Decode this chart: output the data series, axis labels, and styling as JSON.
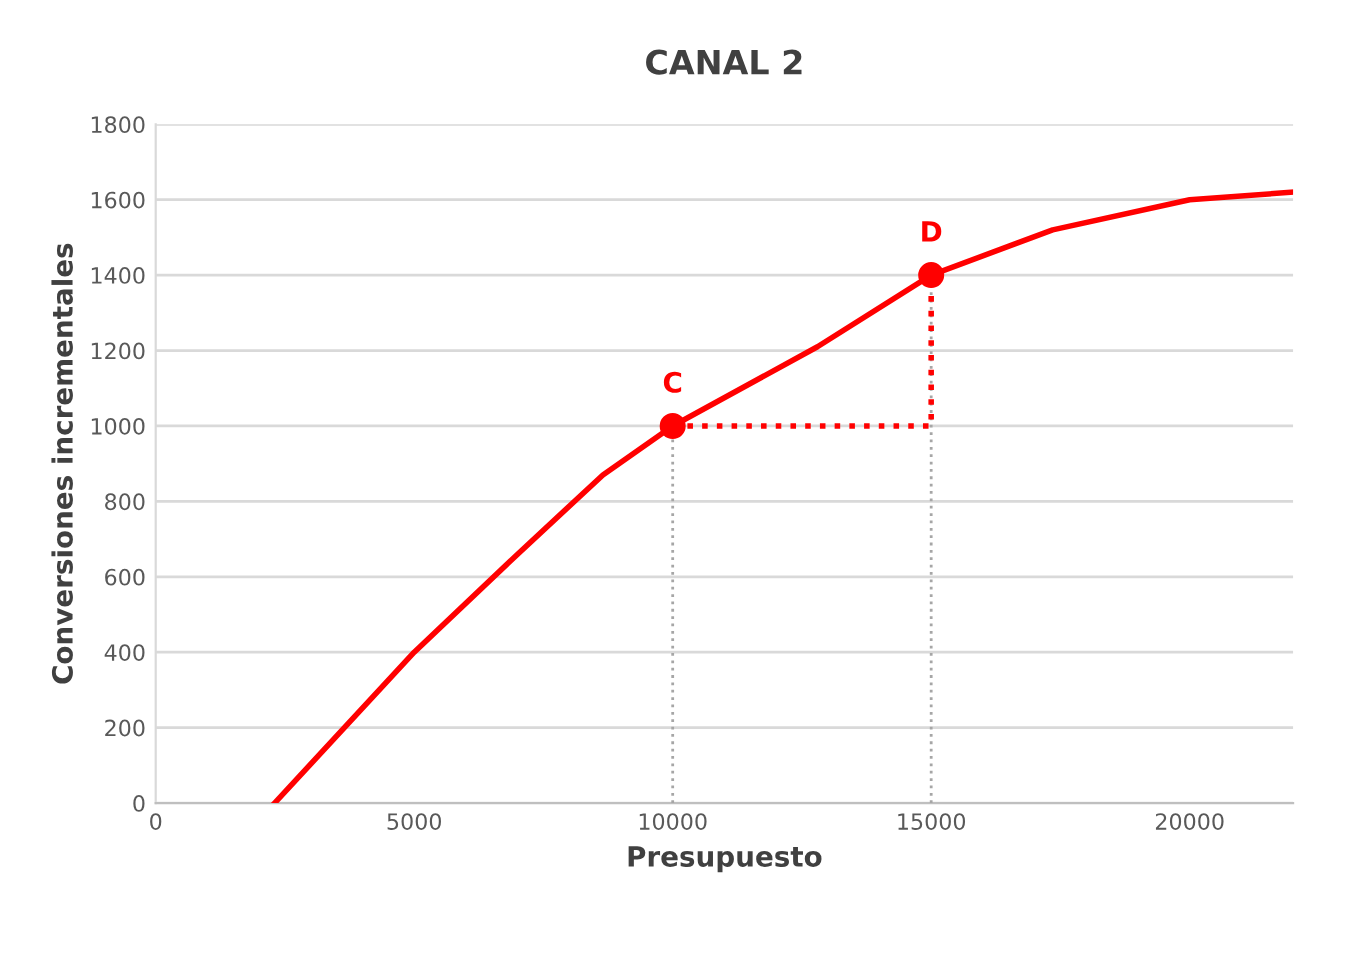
{
  "chart_data": {
    "type": "line",
    "title": "CANAL 2",
    "xlabel": "Presupuesto",
    "ylabel": "Conversiones incrementales",
    "xlim": [
      0,
      22000
    ],
    "xticks": [
      0,
      5000,
      10000,
      15000,
      20000
    ],
    "ylim": [
      0,
      1800
    ],
    "yticks": [
      0,
      200,
      400,
      600,
      800,
      1000,
      1200,
      1400,
      1600,
      1800
    ],
    "grid": "y",
    "legend": false,
    "series": [
      {
        "color": "#ff0000",
        "marker": "none",
        "line_style": "solid",
        "x": [
          2300,
          5000,
          7000,
          8650,
          10000,
          12800,
          15000,
          17350,
          20000,
          22000
        ],
        "values": [
          0,
          400,
          660,
          870,
          1000,
          1210,
          1400,
          1520,
          1600,
          1620
        ]
      },
      {
        "type": "line",
        "color": "#a6a6a6",
        "marker": "none",
        "line_style": "dotted",
        "x": [
          10000,
          10000
        ],
        "values": [
          0,
          1000
        ]
      },
      {
        "type": "line",
        "color": "#a6a6a6",
        "marker": "none",
        "line_style": "dotted",
        "x": [
          15000,
          15000
        ],
        "values": [
          0,
          1400
        ]
      },
      {
        "type": "line",
        "color": "#ff0000",
        "marker": "none",
        "line_style": "dotted",
        "x": [
          10000,
          15000,
          15000
        ],
        "values": [
          1000,
          1000,
          1400
        ]
      },
      {
        "type": "scatter",
        "color": "#ff0000",
        "marker": "circle",
        "x": [
          10000,
          15000
        ],
        "values": [
          1000,
          1400
        ]
      }
    ],
    "annotations": [
      {
        "text": "C",
        "x": 10000,
        "y": 1000
      },
      {
        "text": "D",
        "x": 15000,
        "y": 1400
      }
    ]
  }
}
